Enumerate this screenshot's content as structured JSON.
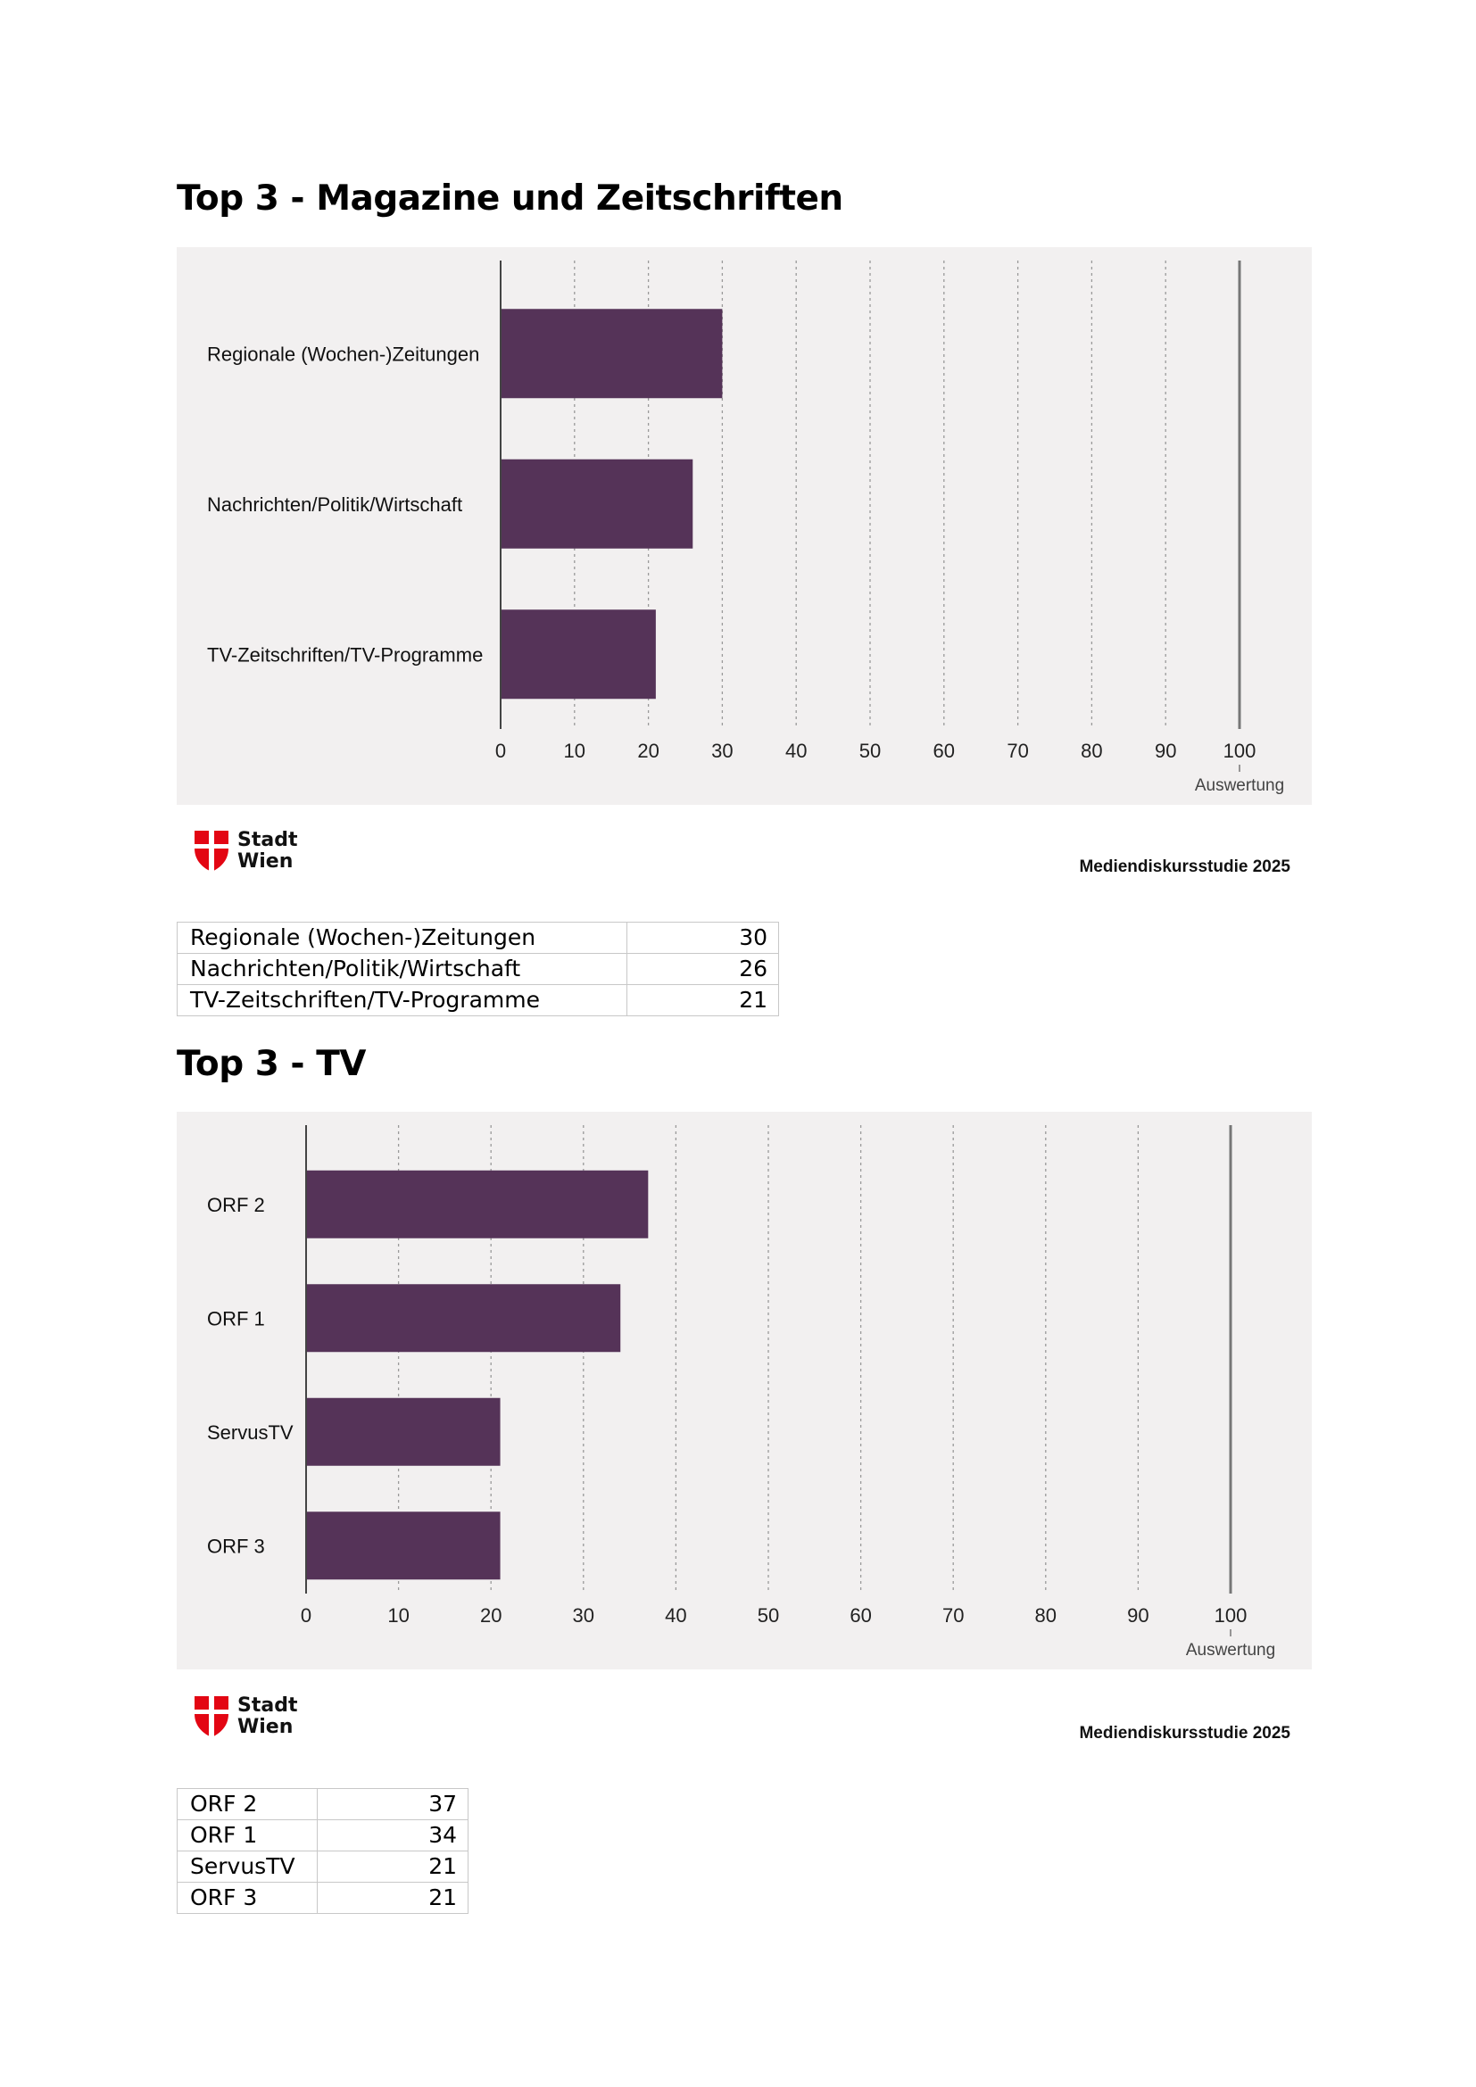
{
  "sections": [
    {
      "heading": "Top 3 - Magazine und Zeitschriften",
      "axis_caption": "Auswertung",
      "brand": {
        "line1": "Stadt",
        "line2": "Wien"
      },
      "study_label": "Mediendiskursstudie 2025",
      "chart_data": {
        "type": "bar",
        "orientation": "horizontal",
        "categories": [
          "Regionale (Wochen-)Zeitungen",
          "Nachrichten/Politik/Wirtschaft",
          "TV-Zeitschriften/TV-Programme"
        ],
        "values": [
          30,
          26,
          21
        ],
        "x_ticks": [
          0,
          10,
          20,
          30,
          40,
          50,
          60,
          70,
          80,
          90,
          100
        ],
        "xlim": [
          0,
          100
        ],
        "xlabel": "Auswertung",
        "grid": "vertical dotted",
        "bar_color": "#553358"
      },
      "table": [
        {
          "label": "Regionale (Wochen-)Zeitungen",
          "value": "30"
        },
        {
          "label": "Nachrichten/Politik/Wirtschaft",
          "value": "26"
        },
        {
          "label": "TV-Zeitschriften/TV-Programme",
          "value": "21"
        }
      ]
    },
    {
      "heading": "Top 3 - TV",
      "axis_caption": "Auswertung",
      "brand": {
        "line1": "Stadt",
        "line2": "Wien"
      },
      "study_label": "Mediendiskursstudie 2025",
      "chart_data": {
        "type": "bar",
        "orientation": "horizontal",
        "categories": [
          "ORF 2",
          "ORF 1",
          "ServusTV",
          "ORF 3"
        ],
        "values": [
          37,
          34,
          21,
          21
        ],
        "x_ticks": [
          0,
          10,
          20,
          30,
          40,
          50,
          60,
          70,
          80,
          90,
          100
        ],
        "xlim": [
          0,
          100
        ],
        "xlabel": "Auswertung",
        "grid": "vertical dotted",
        "bar_color": "#553358"
      },
      "table": [
        {
          "label": "ORF 2",
          "value": "37"
        },
        {
          "label": "ORF 1",
          "value": "34"
        },
        {
          "label": "ServusTV",
          "value": "21"
        },
        {
          "label": "ORF 3",
          "value": "21"
        }
      ]
    }
  ],
  "colors": {
    "panel_bg": "#f2f0f0",
    "bar": "#553358",
    "logo_red": "#e30613"
  }
}
